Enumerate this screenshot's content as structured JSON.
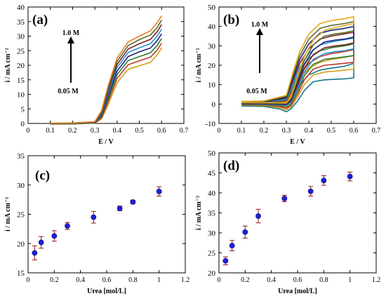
{
  "chart_data": [
    {
      "panel": "(a)",
      "type": "line",
      "xlabel": "E / V",
      "ylabel": "i / mA cm⁻²",
      "xlim": [
        0,
        0.7
      ],
      "ylim": [
        0,
        40
      ],
      "xticks": [
        0,
        0.1,
        0.2,
        0.3,
        0.4,
        0.5,
        0.6,
        0.7
      ],
      "yticks": [
        0,
        5,
        10,
        15,
        20,
        25,
        30,
        35,
        40
      ],
      "grid": false,
      "annotations": {
        "top": "1.0 M",
        "bottom": "0.05 M"
      },
      "series": [
        {
          "color": "#d4a017",
          "x": [
            0.1,
            0.2,
            0.3,
            0.33,
            0.36,
            0.4,
            0.45,
            0.5,
            0.55,
            0.58,
            0.6
          ],
          "y": [
            -0.2,
            -0.2,
            0.1,
            1.5,
            6.5,
            14.0,
            18.6,
            19.8,
            21.0,
            23.5,
            26.0
          ]
        },
        {
          "color": "#c0392b",
          "x": [
            0.1,
            0.2,
            0.3,
            0.33,
            0.36,
            0.4,
            0.45,
            0.5,
            0.55,
            0.58,
            0.6
          ],
          "y": [
            -0.2,
            -0.1,
            0.2,
            2.0,
            7.5,
            15.5,
            20.2,
            21.5,
            22.8,
            25.2,
            27.6
          ]
        },
        {
          "color": "#2e7d32",
          "x": [
            0.1,
            0.2,
            0.3,
            0.33,
            0.36,
            0.4,
            0.45,
            0.5,
            0.55,
            0.58,
            0.6
          ],
          "y": [
            -0.1,
            -0.1,
            0.3,
            2.4,
            8.5,
            16.8,
            21.6,
            23.0,
            24.3,
            26.8,
            29.2
          ]
        },
        {
          "color": "#1a237e",
          "x": [
            0.1,
            0.2,
            0.3,
            0.33,
            0.36,
            0.4,
            0.45,
            0.5,
            0.55,
            0.58,
            0.6
          ],
          "y": [
            -0.1,
            0.0,
            0.3,
            2.8,
            9.5,
            18.0,
            23.0,
            24.6,
            25.9,
            28.4,
            30.8
          ]
        },
        {
          "color": "#2b8fd6",
          "x": [
            0.1,
            0.2,
            0.3,
            0.33,
            0.36,
            0.4,
            0.45,
            0.5,
            0.55,
            0.58,
            0.6
          ],
          "y": [
            0.0,
            0.0,
            0.4,
            3.2,
            10.4,
            19.2,
            24.4,
            26.0,
            27.4,
            30.0,
            32.4
          ]
        },
        {
          "color": "#7b1f1f",
          "x": [
            0.1,
            0.2,
            0.3,
            0.33,
            0.36,
            0.4,
            0.45,
            0.5,
            0.55,
            0.58,
            0.6
          ],
          "y": [
            0.0,
            0.1,
            0.5,
            3.6,
            11.3,
            20.3,
            25.6,
            27.4,
            28.9,
            31.5,
            34.0
          ]
        },
        {
          "color": "#556b2f",
          "x": [
            0.1,
            0.2,
            0.3,
            0.33,
            0.36,
            0.4,
            0.45,
            0.5,
            0.55,
            0.58,
            0.6
          ],
          "y": [
            0.0,
            0.1,
            0.5,
            4.0,
            12.2,
            21.4,
            26.8,
            28.8,
            30.4,
            33.0,
            35.5
          ]
        },
        {
          "color": "#e67e22",
          "x": [
            0.1,
            0.2,
            0.3,
            0.33,
            0.36,
            0.4,
            0.45,
            0.5,
            0.55,
            0.58,
            0.6
          ],
          "y": [
            0.1,
            0.2,
            0.6,
            4.4,
            13.0,
            22.5,
            28.0,
            30.0,
            31.8,
            34.6,
            37.0
          ]
        }
      ]
    },
    {
      "panel": "(b)",
      "type": "line",
      "xlabel": "E / V",
      "ylabel": "i / mA cm⁻²",
      "xlim": [
        0,
        0.7
      ],
      "ylim": [
        -10,
        50
      ],
      "xticks": [
        0,
        0.1,
        0.2,
        0.3,
        0.4,
        0.5,
        0.6,
        0.7
      ],
      "yticks": [
        -10,
        0,
        10,
        20,
        30,
        40,
        50
      ],
      "grid": false,
      "annotations": {
        "top": "1.0 M",
        "bottom": "0.05 M"
      },
      "series": [
        {
          "color": "#117a8b",
          "x": [
            0.1,
            0.2,
            0.27,
            0.3,
            0.32,
            0.35,
            0.38,
            0.42,
            0.47,
            0.52,
            0.56,
            0.6,
            0.6,
            0.56,
            0.5,
            0.45,
            0.4,
            0.36,
            0.33,
            0.3,
            0.2,
            0.1
          ],
          "y": [
            -1.0,
            -1.2,
            -2.5,
            -4.0,
            -2.5,
            1.5,
            7.0,
            11.5,
            12.5,
            12.8,
            13.0,
            13.5,
            21.0,
            19.5,
            18.5,
            17.5,
            15.0,
            10.0,
            4.0,
            0.0,
            -0.2,
            -0.2
          ]
        },
        {
          "color": "#d4a017",
          "x": [
            0.1,
            0.2,
            0.27,
            0.3,
            0.32,
            0.35,
            0.38,
            0.42,
            0.47,
            0.52,
            0.56,
            0.6,
            0.6,
            0.56,
            0.5,
            0.45,
            0.4,
            0.36,
            0.33,
            0.3,
            0.2,
            0.1
          ],
          "y": [
            -0.6,
            -0.8,
            -1.8,
            -3.0,
            -1.5,
            3.5,
            10.0,
            15.0,
            16.5,
            17.0,
            17.5,
            18.0,
            25.0,
            24.0,
            23.0,
            21.5,
            18.5,
            13.0,
            6.0,
            1.0,
            0.2,
            0.0
          ]
        },
        {
          "color": "#c0392b",
          "x": [
            0.1,
            0.2,
            0.27,
            0.3,
            0.32,
            0.35,
            0.38,
            0.42,
            0.47,
            0.52,
            0.56,
            0.6,
            0.6,
            0.56,
            0.5,
            0.45,
            0.4,
            0.36,
            0.33,
            0.3,
            0.2,
            0.1
          ],
          "y": [
            -0.4,
            -0.5,
            -1.2,
            -2.2,
            -0.8,
            5.0,
            12.5,
            18.0,
            20.0,
            20.5,
            21.0,
            21.5,
            28.0,
            27.0,
            26.0,
            24.5,
            21.0,
            15.0,
            7.5,
            1.5,
            0.4,
            0.2
          ]
        },
        {
          "color": "#2e7d32",
          "x": [
            0.1,
            0.2,
            0.27,
            0.3,
            0.32,
            0.35,
            0.38,
            0.42,
            0.47,
            0.52,
            0.56,
            0.6,
            0.6,
            0.56,
            0.5,
            0.45,
            0.4,
            0.36,
            0.33,
            0.3,
            0.2,
            0.1
          ],
          "y": [
            -0.2,
            -0.3,
            -0.8,
            -1.5,
            0.0,
            6.5,
            14.5,
            20.5,
            23.0,
            23.8,
            24.3,
            25.0,
            31.0,
            30.0,
            29.0,
            27.5,
            23.5,
            17.0,
            9.0,
            2.0,
            0.6,
            0.4
          ]
        },
        {
          "color": "#2b8fd6",
          "x": [
            0.1,
            0.2,
            0.27,
            0.3,
            0.32,
            0.35,
            0.38,
            0.42,
            0.47,
            0.52,
            0.56,
            0.6,
            0.6,
            0.56,
            0.5,
            0.45,
            0.4,
            0.36,
            0.33,
            0.3,
            0.2,
            0.1
          ],
          "y": [
            0.0,
            -0.1,
            -0.4,
            -0.8,
            0.8,
            8.0,
            16.5,
            23.0,
            26.0,
            27.0,
            27.5,
            28.5,
            34.0,
            33.2,
            32.0,
            30.5,
            26.0,
            19.0,
            10.5,
            2.5,
            0.8,
            0.6
          ]
        },
        {
          "color": "#7b1f1f",
          "x": [
            0.1,
            0.2,
            0.27,
            0.3,
            0.32,
            0.35,
            0.38,
            0.42,
            0.47,
            0.52,
            0.56,
            0.6,
            0.6,
            0.56,
            0.5,
            0.45,
            0.4,
            0.36,
            0.33,
            0.3,
            0.2,
            0.1
          ],
          "y": [
            0.2,
            0.1,
            -0.1,
            -0.3,
            1.5,
            9.5,
            18.5,
            25.5,
            29.0,
            30.0,
            30.5,
            31.5,
            37.0,
            36.2,
            35.0,
            33.5,
            28.5,
            21.0,
            12.0,
            3.0,
            1.0,
            0.8
          ]
        },
        {
          "color": "#1a237e",
          "x": [
            0.1,
            0.2,
            0.27,
            0.3,
            0.32,
            0.35,
            0.38,
            0.42,
            0.47,
            0.52,
            0.56,
            0.6,
            0.6,
            0.56,
            0.5,
            0.45,
            0.4,
            0.36,
            0.33,
            0.3,
            0.2,
            0.1
          ],
          "y": [
            0.4,
            0.3,
            0.2,
            0.1,
            2.2,
            11.0,
            20.5,
            28.0,
            32.0,
            33.0,
            33.5,
            34.5,
            40.0,
            39.0,
            38.0,
            36.5,
            31.0,
            23.0,
            13.5,
            3.5,
            1.2,
            1.0
          ]
        },
        {
          "color": "#556b2f",
          "x": [
            0.1,
            0.2,
            0.27,
            0.3,
            0.32,
            0.35,
            0.38,
            0.42,
            0.47,
            0.52,
            0.56,
            0.6,
            0.6,
            0.56,
            0.5,
            0.45,
            0.4,
            0.36,
            0.33,
            0.3,
            0.2,
            0.1
          ],
          "y": [
            0.6,
            0.5,
            0.4,
            0.4,
            2.8,
            12.5,
            22.5,
            30.5,
            35.0,
            36.2,
            36.8,
            37.8,
            42.5,
            41.5,
            40.5,
            39.0,
            33.5,
            25.0,
            15.0,
            4.0,
            1.4,
            1.2
          ]
        },
        {
          "color": "#e6a817",
          "x": [
            0.1,
            0.2,
            0.27,
            0.3,
            0.32,
            0.35,
            0.38,
            0.42,
            0.47,
            0.52,
            0.56,
            0.6,
            0.6,
            0.56,
            0.5,
            0.45,
            0.4,
            0.36,
            0.33,
            0.3,
            0.2,
            0.1
          ],
          "y": [
            0.8,
            0.7,
            0.6,
            0.6,
            3.4,
            14.0,
            24.5,
            33.0,
            38.0,
            39.5,
            40.5,
            41.5,
            45.0,
            44.0,
            43.0,
            41.5,
            36.0,
            27.0,
            16.5,
            4.5,
            1.6,
            1.4
          ]
        }
      ]
    },
    {
      "panel": "(c)",
      "type": "scatter",
      "xlabel": "Urea [mol/L]",
      "ylabel": "i / mA cm⁻²",
      "xlim": [
        0,
        1.2
      ],
      "ylim": [
        15,
        35
      ],
      "xticks": [
        0,
        0.2,
        0.4,
        0.6,
        0.8,
        1,
        1.2
      ],
      "yticks": [
        15,
        20,
        25,
        30,
        35
      ],
      "grid": false,
      "marker_color": "#1f1fd6",
      "errorbar_color": "#8b1a1a",
      "x": [
        0.05,
        0.1,
        0.2,
        0.3,
        0.5,
        0.7,
        0.8,
        1.0
      ],
      "y": [
        18.4,
        20.2,
        21.3,
        23.0,
        24.5,
        26.0,
        27.1,
        28.9
      ],
      "yerr": [
        1.2,
        1.0,
        0.9,
        0.6,
        1.0,
        0.4,
        0.3,
        0.8
      ]
    },
    {
      "panel": "(d)",
      "type": "scatter",
      "xlabel": "Urea [mol/L]",
      "ylabel": "i / mA cm⁻²",
      "xlim": [
        0,
        1.2
      ],
      "ylim": [
        20,
        50
      ],
      "xticks": [
        0,
        0.2,
        0.4,
        0.6,
        0.8,
        1,
        1.2
      ],
      "yticks": [
        20,
        25,
        30,
        35,
        40,
        45,
        50
      ],
      "grid": false,
      "marker_color": "#1f1fd6",
      "errorbar_color": "#8b1a1a",
      "x": [
        0.05,
        0.1,
        0.2,
        0.3,
        0.5,
        0.7,
        0.8,
        1.0
      ],
      "y": [
        23.0,
        26.8,
        30.2,
        34.2,
        38.6,
        40.4,
        43.1,
        44.1
      ],
      "yerr": [
        1.0,
        1.3,
        1.5,
        1.7,
        0.8,
        1.2,
        1.2,
        1.1
      ]
    }
  ]
}
